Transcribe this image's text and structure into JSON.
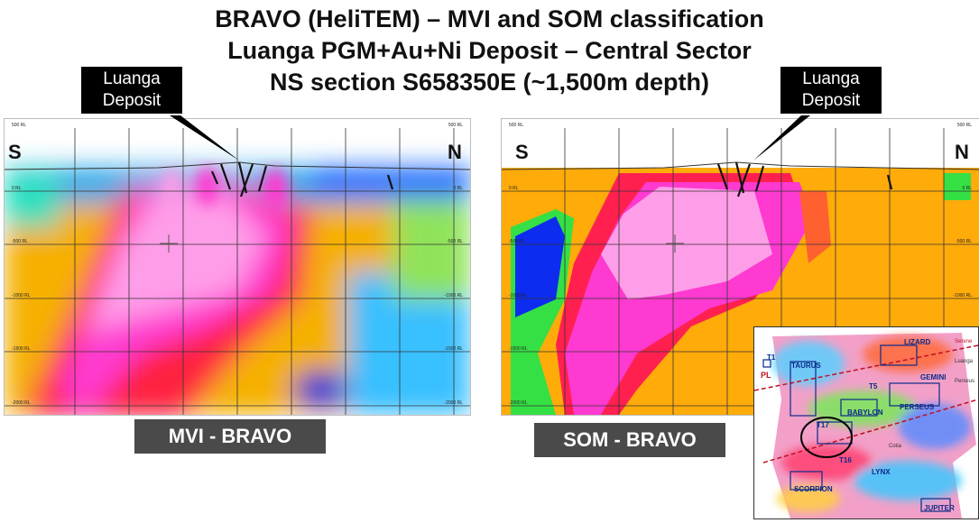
{
  "title": {
    "line1": "BRAVO (HeliTEM) –  MVI and SOM classification",
    "line2": "Luanga PGM+Au+Ni Deposit – Central Sector",
    "line3": "NS section S658350E (~1,500m depth)"
  },
  "callouts": {
    "left": [
      "Luanga",
      "Deposit"
    ],
    "right": [
      "Luanga",
      "Deposit"
    ]
  },
  "directions": {
    "south": "S",
    "north": "N"
  },
  "panels": {
    "mvi_label": "MVI - BRAVO",
    "som_label": "SOM - BRAVO",
    "depth_ticks": [
      "500 RL",
      "0 RL",
      "-500 RL",
      "-1000 RL",
      "-1500 RL",
      "-2000 RL"
    ]
  },
  "inset_map": {
    "targets": [
      "T1",
      "TAURUS",
      "LIZARD",
      "GEMINI",
      "T5",
      "BABYLON",
      "PERSEUS",
      "T17",
      "T16",
      "LYNX",
      "SCORPION",
      "JUPITER"
    ],
    "lines": [
      "PL",
      "Serene",
      "Luanga",
      "Perseus",
      "Cotia"
    ]
  }
}
